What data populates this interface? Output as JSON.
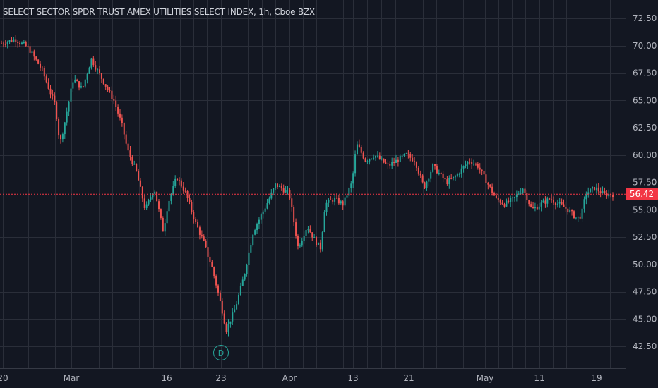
{
  "header": {
    "title": "SELECT SECTOR SPDR TRUST AMEX UTILITIES SELECT INDEX, 1h, Cboe BZX"
  },
  "last_price": {
    "label": "56.42",
    "value": 56.42
  },
  "marker": {
    "label": "D"
  },
  "colors": {
    "background": "#131722",
    "grid": "#2a2e39",
    "up": "#26a69a",
    "down": "#ef5350",
    "price_line": "#f23645",
    "text": "#b2b5be"
  },
  "chart_data": {
    "type": "candlestick",
    "title": "SELECT SECTOR SPDR TRUST AMEX UTILITIES SELECT INDEX, 1h, Cboe BZX",
    "y_ticks": [
      "42.50",
      "45.00",
      "47.50",
      "50.00",
      "52.50",
      "55.00",
      "57.50",
      "60.00",
      "62.50",
      "65.00",
      "67.50",
      "70.00",
      "72.50"
    ],
    "y_tick_values": [
      42.5,
      45,
      47.5,
      50,
      52.5,
      55,
      57.5,
      60,
      62.5,
      65,
      67.5,
      70,
      72.5
    ],
    "x_ticks": [
      "20",
      "Mar",
      "16",
      "23",
      "Apr",
      "13",
      "21",
      "May",
      "11",
      "19"
    ],
    "ylim": [
      41,
      73.5
    ],
    "last_price": 56.42,
    "grid": true,
    "marker": {
      "label": "D",
      "near": "23"
    },
    "close_path": [
      [
        0,
        70.2
      ],
      [
        3,
        70.6
      ],
      [
        6,
        69.8
      ],
      [
        9,
        67.8
      ],
      [
        12,
        64.5
      ],
      [
        13,
        61.0
      ],
      [
        14,
        62.8
      ],
      [
        16,
        67.0
      ],
      [
        18,
        66.0
      ],
      [
        20,
        68.8
      ],
      [
        21,
        68.0
      ],
      [
        23,
        66.5
      ],
      [
        25,
        65.0
      ],
      [
        27,
        62.5
      ],
      [
        28,
        60.5
      ],
      [
        30,
        58.5
      ],
      [
        32,
        55.0
      ],
      [
        34,
        57.0
      ],
      [
        36,
        53.0
      ],
      [
        37,
        55.5
      ],
      [
        39,
        58.0
      ],
      [
        41,
        56.5
      ],
      [
        43,
        54.0
      ],
      [
        45,
        52.0
      ],
      [
        47,
        49.5
      ],
      [
        49,
        46.0
      ],
      [
        50,
        44.0
      ],
      [
        52,
        46.0
      ],
      [
        54,
        49.0
      ],
      [
        56,
        53.0
      ],
      [
        59,
        55.5
      ],
      [
        61,
        57.3
      ],
      [
        64,
        56.5
      ],
      [
        65,
        54.0
      ],
      [
        66,
        51.5
      ],
      [
        68,
        53.5
      ],
      [
        70,
        52.0
      ],
      [
        71,
        51.5
      ],
      [
        72,
        55.5
      ],
      [
        74,
        56.0
      ],
      [
        76,
        55.5
      ],
      [
        78,
        57.5
      ],
      [
        79,
        61.0
      ],
      [
        81,
        59.5
      ],
      [
        83,
        60.0
      ],
      [
        86,
        59.0
      ],
      [
        88,
        59.5
      ],
      [
        90,
        60.0
      ],
      [
        92,
        59.5
      ],
      [
        94,
        57.0
      ],
      [
        96,
        59.0
      ],
      [
        99,
        57.5
      ],
      [
        101,
        58.0
      ],
      [
        104,
        59.5
      ],
      [
        106,
        59.0
      ],
      [
        108,
        57.5
      ],
      [
        110,
        56.0
      ],
      [
        112,
        55.5
      ],
      [
        114,
        56.0
      ],
      [
        116,
        57.0
      ],
      [
        118,
        55.0
      ],
      [
        120,
        55.5
      ],
      [
        122,
        56.0
      ],
      [
        124,
        55.5
      ],
      [
        126,
        55.0
      ],
      [
        128,
        54.2
      ],
      [
        129,
        54.5
      ],
      [
        130,
        56.5
      ],
      [
        132,
        57.0
      ],
      [
        134,
        56.4
      ],
      [
        136,
        56.42
      ]
    ]
  }
}
